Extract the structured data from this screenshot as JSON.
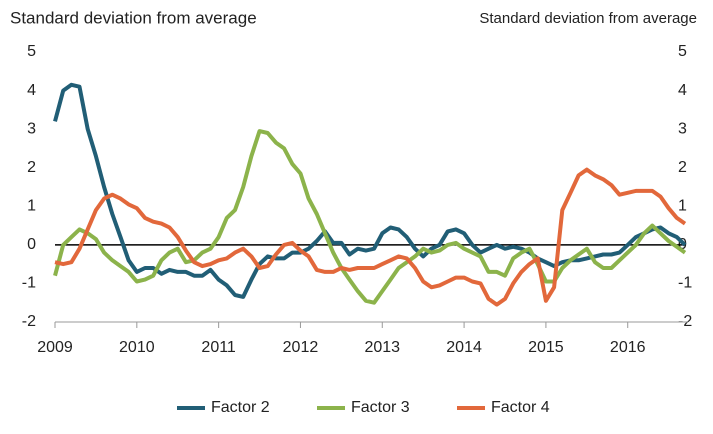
{
  "chart_data": {
    "type": "line",
    "ylabel": "Standard deviation from average",
    "y2label": "Standard deviation from average",
    "x": [
      2009.0,
      2009.1,
      2009.2,
      2009.3,
      2009.4,
      2009.5,
      2009.6,
      2009.7,
      2009.8,
      2009.9,
      2010.0,
      2010.1,
      2010.2,
      2010.3,
      2010.4,
      2010.5,
      2010.6,
      2010.7,
      2010.8,
      2010.9,
      2011.0,
      2011.1,
      2011.2,
      2011.3,
      2011.4,
      2011.5,
      2011.6,
      2011.7,
      2011.8,
      2011.9,
      2012.0,
      2012.1,
      2012.2,
      2012.3,
      2012.4,
      2012.5,
      2012.6,
      2012.7,
      2012.8,
      2012.9,
      2013.0,
      2013.1,
      2013.2,
      2013.3,
      2013.4,
      2013.5,
      2013.6,
      2013.7,
      2013.8,
      2013.9,
      2014.0,
      2014.1,
      2014.2,
      2014.3,
      2014.4,
      2014.5,
      2014.6,
      2014.7,
      2014.8,
      2014.9,
      2015.0,
      2015.1,
      2015.2,
      2015.3,
      2015.4,
      2015.5,
      2015.6,
      2015.7,
      2015.8,
      2015.9,
      2016.0,
      2016.1,
      2016.2,
      2016.3,
      2016.4,
      2016.5,
      2016.6,
      2016.7
    ],
    "series": [
      {
        "name": "Factor 2",
        "color": "#215e76",
        "values": [
          3.2,
          4.0,
          4.15,
          4.1,
          3.0,
          2.3,
          1.5,
          0.8,
          0.2,
          -0.4,
          -0.7,
          -0.6,
          -0.6,
          -0.75,
          -0.65,
          -0.7,
          -0.7,
          -0.8,
          -0.8,
          -0.65,
          -0.9,
          -1.05,
          -1.3,
          -1.35,
          -0.9,
          -0.5,
          -0.3,
          -0.35,
          -0.35,
          -0.2,
          -0.2,
          -0.1,
          0.1,
          0.35,
          0.05,
          0.05,
          -0.25,
          -0.1,
          -0.15,
          -0.1,
          0.3,
          0.45,
          0.4,
          0.2,
          -0.1,
          -0.3,
          -0.1,
          0.0,
          0.35,
          0.4,
          0.3,
          0.0,
          -0.2,
          -0.1,
          0.0,
          -0.1,
          -0.05,
          -0.1,
          -0.2,
          -0.35,
          -0.45,
          -0.55,
          -0.45,
          -0.4,
          -0.4,
          -0.35,
          -0.3,
          -0.25,
          -0.25,
          -0.2,
          0.0,
          0.2,
          0.3,
          0.4,
          0.45,
          0.3,
          0.2,
          0.0
        ]
      },
      {
        "name": "Factor 3",
        "color": "#8cb34b",
        "values": [
          -0.8,
          0.0,
          0.2,
          0.4,
          0.3,
          0.15,
          -0.2,
          -0.4,
          -0.55,
          -0.7,
          -0.95,
          -0.9,
          -0.8,
          -0.4,
          -0.2,
          -0.1,
          -0.45,
          -0.4,
          -0.2,
          -0.1,
          0.2,
          0.7,
          0.9,
          1.5,
          2.3,
          2.95,
          2.9,
          2.65,
          2.5,
          2.1,
          1.85,
          1.2,
          0.8,
          0.3,
          -0.2,
          -0.6,
          -0.9,
          -1.2,
          -1.45,
          -1.5,
          -1.2,
          -0.9,
          -0.6,
          -0.45,
          -0.3,
          -0.1,
          -0.2,
          -0.15,
          0.0,
          0.05,
          -0.1,
          -0.2,
          -0.3,
          -0.7,
          -0.7,
          -0.8,
          -0.35,
          -0.2,
          -0.1,
          -0.5,
          -0.95,
          -0.95,
          -0.6,
          -0.4,
          -0.25,
          -0.1,
          -0.45,
          -0.6,
          -0.6,
          -0.4,
          -0.2,
          0.0,
          0.3,
          0.5,
          0.3,
          0.1,
          -0.05,
          -0.2
        ]
      },
      {
        "name": "Factor 4",
        "color": "#e2683b",
        "values": [
          -0.45,
          -0.5,
          -0.45,
          -0.1,
          0.4,
          0.9,
          1.2,
          1.3,
          1.2,
          1.05,
          0.95,
          0.7,
          0.6,
          0.55,
          0.45,
          0.2,
          -0.15,
          -0.45,
          -0.55,
          -0.5,
          -0.4,
          -0.35,
          -0.2,
          -0.1,
          -0.3,
          -0.6,
          -0.55,
          -0.25,
          0.0,
          0.05,
          -0.15,
          -0.3,
          -0.65,
          -0.7,
          -0.7,
          -0.6,
          -0.65,
          -0.6,
          -0.6,
          -0.6,
          -0.5,
          -0.4,
          -0.3,
          -0.35,
          -0.6,
          -0.95,
          -1.1,
          -1.05,
          -0.95,
          -0.85,
          -0.85,
          -0.95,
          -1.0,
          -1.4,
          -1.55,
          -1.4,
          -1.0,
          -0.7,
          -0.5,
          -0.35,
          -1.45,
          -1.1,
          0.9,
          1.35,
          1.8,
          1.95,
          1.8,
          1.7,
          1.55,
          1.3,
          1.35,
          1.4,
          1.4,
          1.4,
          1.25,
          0.95,
          0.7,
          0.55
        ]
      }
    ],
    "xlim": [
      2009,
      2016.7
    ],
    "xticks": [
      2009,
      2010,
      2011,
      2012,
      2013,
      2014,
      2015,
      2016
    ],
    "ylim": [
      -2,
      5
    ],
    "yticks": [
      -2,
      -1,
      0,
      1,
      2,
      3,
      4,
      5
    ],
    "y2lim": [
      -2,
      5
    ],
    "y2ticks": [
      -2,
      -1,
      0,
      1,
      2,
      3,
      4,
      5
    ],
    "legend": "bottom"
  }
}
